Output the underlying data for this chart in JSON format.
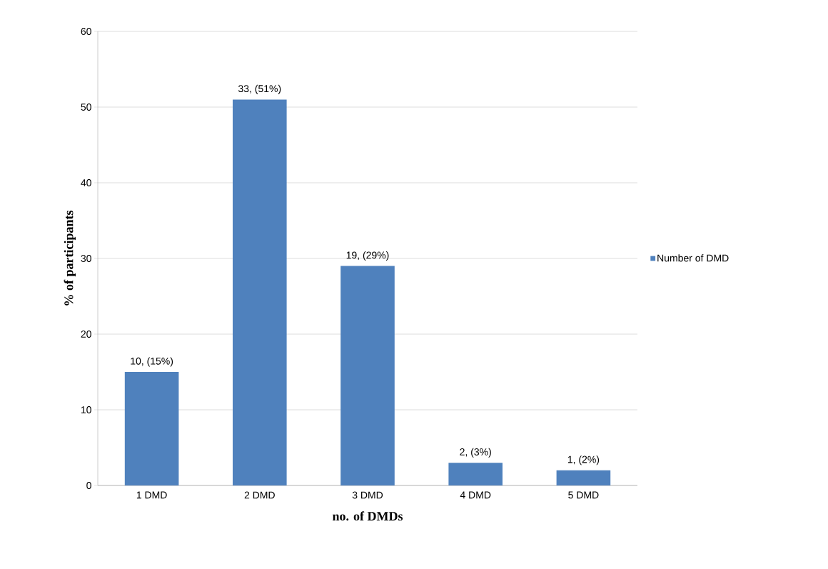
{
  "chart_data": {
    "type": "bar",
    "xlabel": "no. of DMDs",
    "ylabel": "% of participants",
    "categories": [
      "1 DMD",
      "2 DMD",
      "3 DMD",
      "4 DMD",
      "5 DMD"
    ],
    "series": [
      {
        "name": "Number of DMD",
        "color": "#4f81bd",
        "values": [
          15,
          51,
          29,
          3,
          2
        ],
        "value_labels": [
          "10, (15%)",
          "33, (51%)",
          "19, (29%)",
          "2, (3%)",
          "1, (2%)"
        ]
      }
    ],
    "ylim": [
      0,
      60
    ],
    "yticks": [
      0,
      10,
      20,
      30,
      40,
      50,
      60
    ],
    "grid": "y",
    "legend": "right"
  }
}
